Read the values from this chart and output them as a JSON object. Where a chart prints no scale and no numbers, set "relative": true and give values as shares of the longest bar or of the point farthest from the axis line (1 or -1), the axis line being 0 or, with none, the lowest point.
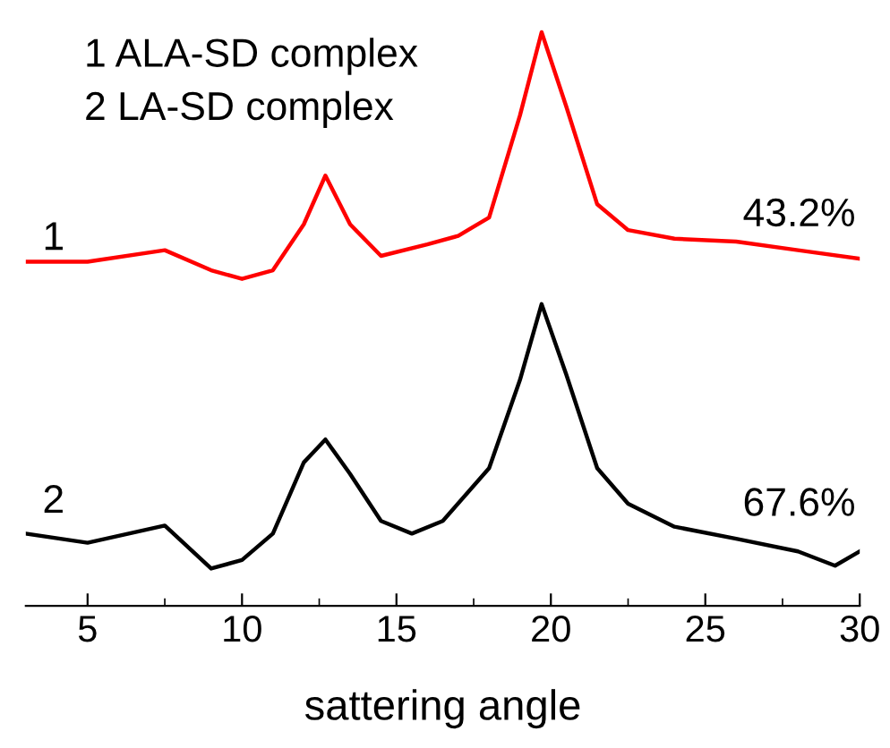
{
  "chart_data": {
    "type": "line",
    "relative": true,
    "xlabel": "sattering angle",
    "xlim": [
      3,
      30
    ],
    "xticks": [
      5,
      10,
      15,
      20,
      25,
      30
    ],
    "tick_labels": "x",
    "grid": false,
    "legend": false,
    "annotations": [
      "1 ALA-SD complex",
      "2 LA-SD complex",
      "1",
      "2",
      "43.2%",
      "67.6%"
    ],
    "series": [
      {
        "color": "#ff0000",
        "x": [
          3,
          5,
          7.5,
          9,
          10,
          11,
          12,
          12.7,
          13.5,
          14.5,
          16,
          17,
          18,
          19,
          19.7,
          20.5,
          21.5,
          22.5,
          24,
          26,
          28,
          30
        ],
        "values": [
          0.6,
          0.6,
          0.62,
          0.585,
          0.57,
          0.585,
          0.665,
          0.75,
          0.665,
          0.61,
          0.63,
          0.645,
          0.677,
          0.855,
          1.0,
          0.87,
          0.7,
          0.655,
          0.64,
          0.635,
          0.62,
          0.605
        ]
      },
      {
        "color": "#000000",
        "x": [
          3,
          5,
          7.5,
          9,
          10,
          11,
          12,
          12.7,
          13.5,
          14.5,
          15.5,
          16.5,
          18,
          19,
          19.7,
          20.5,
          21.5,
          22.5,
          24,
          26,
          28,
          29.2,
          30
        ],
        "values": [
          0.126,
          0.11,
          0.14,
          0.065,
          0.08,
          0.126,
          0.25,
          0.29,
          0.23,
          0.148,
          0.126,
          0.148,
          0.24,
          0.394,
          0.526,
          0.403,
          0.24,
          0.178,
          0.138,
          0.117,
          0.095,
          0.07,
          0.095
        ]
      }
    ]
  }
}
